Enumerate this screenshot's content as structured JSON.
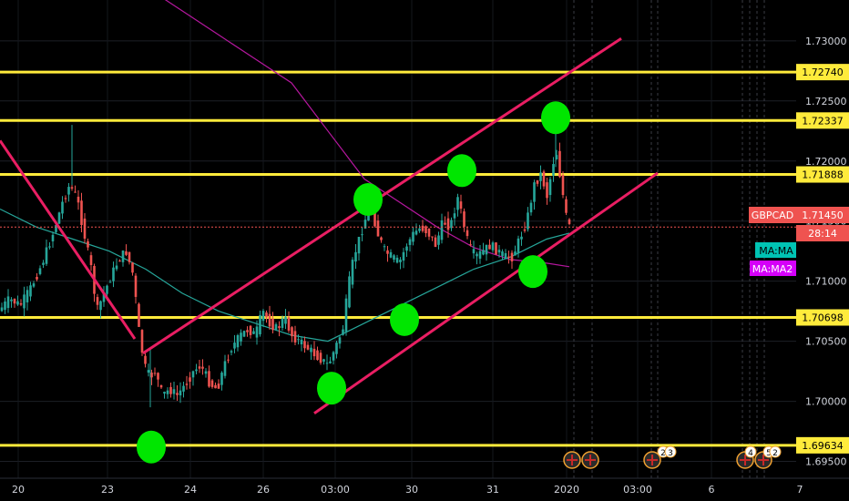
{
  "chart_data": {
    "type": "candlestick",
    "symbol": "GBPCAD",
    "last_price": "1.71450",
    "countdown": "28:14",
    "ma_labels": [
      "MA:MA",
      "MA:MA2"
    ],
    "colors": {
      "background": "#000000",
      "up": "#26a69a",
      "down": "#ef5350",
      "levels": "#ffeb3b",
      "channel": "#e91e63",
      "markers": "#00e600",
      "ma1": "#26a69a",
      "ma2": "#b5179e",
      "price_tag": "#ef5350",
      "ma_tag": "#00c4b4",
      "ma2_tag": "#d500f9"
    },
    "y_range": [
      1.6936,
      1.7334
    ],
    "y_ticks": [
      "1.73000",
      "1.72500",
      "1.72000",
      "1.71500",
      "1.71000",
      "1.70500",
      "1.70000",
      "1.69500"
    ],
    "x_ticks": [
      "20",
      "23",
      "24",
      "26",
      "03:00",
      "30",
      "31",
      "2020",
      "03:00",
      "6",
      "7"
    ],
    "horizontal_levels": [
      {
        "value": 1.7274,
        "label": "1.72740"
      },
      {
        "value": 1.72337,
        "label": "1.72337"
      },
      {
        "value": 1.71888,
        "label": "1.71888"
      },
      {
        "value": 1.70698,
        "label": "1.70698"
      },
      {
        "value": 1.69634,
        "label": "1.69634"
      }
    ],
    "price_path": [
      [
        0,
        1.7075
      ],
      [
        12,
        1.7085
      ],
      [
        24,
        1.708
      ],
      [
        36,
        1.7095
      ],
      [
        48,
        1.7115
      ],
      [
        60,
        1.714
      ],
      [
        70,
        1.7165
      ],
      [
        78,
        1.718
      ],
      [
        86,
        1.717
      ],
      [
        94,
        1.714
      ],
      [
        102,
        1.711
      ],
      [
        108,
        1.7075
      ],
      [
        116,
        1.709
      ],
      [
        124,
        1.7105
      ],
      [
        132,
        1.7118
      ],
      [
        140,
        1.7125
      ],
      [
        148,
        1.7105
      ],
      [
        154,
        1.706
      ],
      [
        160,
        1.703
      ],
      [
        166,
        1.702
      ],
      [
        172,
        1.7025
      ],
      [
        180,
        1.7005
      ],
      [
        188,
        1.701
      ],
      [
        196,
        1.7005
      ],
      [
        206,
        1.7015
      ],
      [
        214,
        1.7025
      ],
      [
        222,
        1.703
      ],
      [
        232,
        1.7015
      ],
      [
        240,
        1.701
      ],
      [
        248,
        1.703
      ],
      [
        256,
        1.7045
      ],
      [
        266,
        1.7055
      ],
      [
        274,
        1.706
      ],
      [
        282,
        1.7055
      ],
      [
        290,
        1.7075
      ],
      [
        298,
        1.7065
      ],
      [
        306,
        1.706
      ],
      [
        314,
        1.707
      ],
      [
        322,
        1.7055
      ],
      [
        330,
        1.705
      ],
      [
        338,
        1.7045
      ],
      [
        346,
        1.704
      ],
      [
        354,
        1.7035
      ],
      [
        362,
        1.703
      ],
      [
        370,
        1.7045
      ],
      [
        378,
        1.706
      ],
      [
        384,
        1.7095
      ],
      [
        390,
        1.712
      ],
      [
        398,
        1.714
      ],
      [
        404,
        1.7155
      ],
      [
        410,
        1.716
      ],
      [
        416,
        1.714
      ],
      [
        424,
        1.7125
      ],
      [
        432,
        1.712
      ],
      [
        440,
        1.7115
      ],
      [
        448,
        1.713
      ],
      [
        456,
        1.714
      ],
      [
        464,
        1.7145
      ],
      [
        472,
        1.714
      ],
      [
        480,
        1.713
      ],
      [
        488,
        1.715
      ],
      [
        496,
        1.7145
      ],
      [
        504,
        1.717
      ],
      [
        510,
        1.715
      ],
      [
        516,
        1.713
      ],
      [
        524,
        1.712
      ],
      [
        532,
        1.7125
      ],
      [
        540,
        1.713
      ],
      [
        548,
        1.7125
      ],
      [
        556,
        1.712
      ],
      [
        564,
        1.712
      ],
      [
        572,
        1.7135
      ],
      [
        580,
        1.715
      ],
      [
        588,
        1.718
      ],
      [
        596,
        1.719
      ],
      [
        602,
        1.717
      ],
      [
        608,
        1.7195
      ],
      [
        612,
        1.721
      ],
      [
        616,
        1.719
      ],
      [
        620,
        1.717
      ],
      [
        624,
        1.715
      ],
      [
        627,
        1.7145
      ]
    ],
    "ma1_path": [
      [
        0,
        1.716
      ],
      [
        40,
        1.7145
      ],
      [
        80,
        1.7135
      ],
      [
        120,
        1.7125
      ],
      [
        160,
        1.711
      ],
      [
        200,
        1.709
      ],
      [
        240,
        1.7075
      ],
      [
        280,
        1.7065
      ],
      [
        320,
        1.7055
      ],
      [
        360,
        1.705
      ],
      [
        400,
        1.7065
      ],
      [
        440,
        1.708
      ],
      [
        480,
        1.7095
      ],
      [
        520,
        1.711
      ],
      [
        560,
        1.712
      ],
      [
        600,
        1.7135
      ],
      [
        625,
        1.714
      ]
    ],
    "ma2_path": [
      [
        160,
        1.7345
      ],
      [
        200,
        1.7325
      ],
      [
        240,
        1.7305
      ],
      [
        280,
        1.7285
      ],
      [
        320,
        1.7265
      ],
      [
        360,
        1.7225
      ],
      [
        400,
        1.7185
      ],
      [
        440,
        1.7165
      ],
      [
        480,
        1.7145
      ],
      [
        520,
        1.7128
      ],
      [
        560,
        1.7118
      ],
      [
        600,
        1.7115
      ],
      [
        625,
        1.7112
      ]
    ],
    "trendlines": [
      {
        "from": [
          0,
          1.7217
        ],
        "to": [
          148,
          1.7052
        ]
      },
      {
        "from": [
          157,
          1.704
        ],
        "to": [
          682,
          1.7302
        ]
      },
      {
        "from": [
          345,
          1.699
        ],
        "to": [
          722,
          1.719
        ]
      }
    ],
    "markers": [
      [
        166,
        1.6962
      ],
      [
        364,
        1.7011
      ],
      [
        404,
        1.7168
      ],
      [
        444,
        1.7068
      ],
      [
        507,
        1.7192
      ],
      [
        585,
        1.7108
      ],
      [
        610,
        1.7236
      ]
    ],
    "event_markers": [
      "2",
      "3",
      "4",
      "5",
      "2"
    ]
  }
}
